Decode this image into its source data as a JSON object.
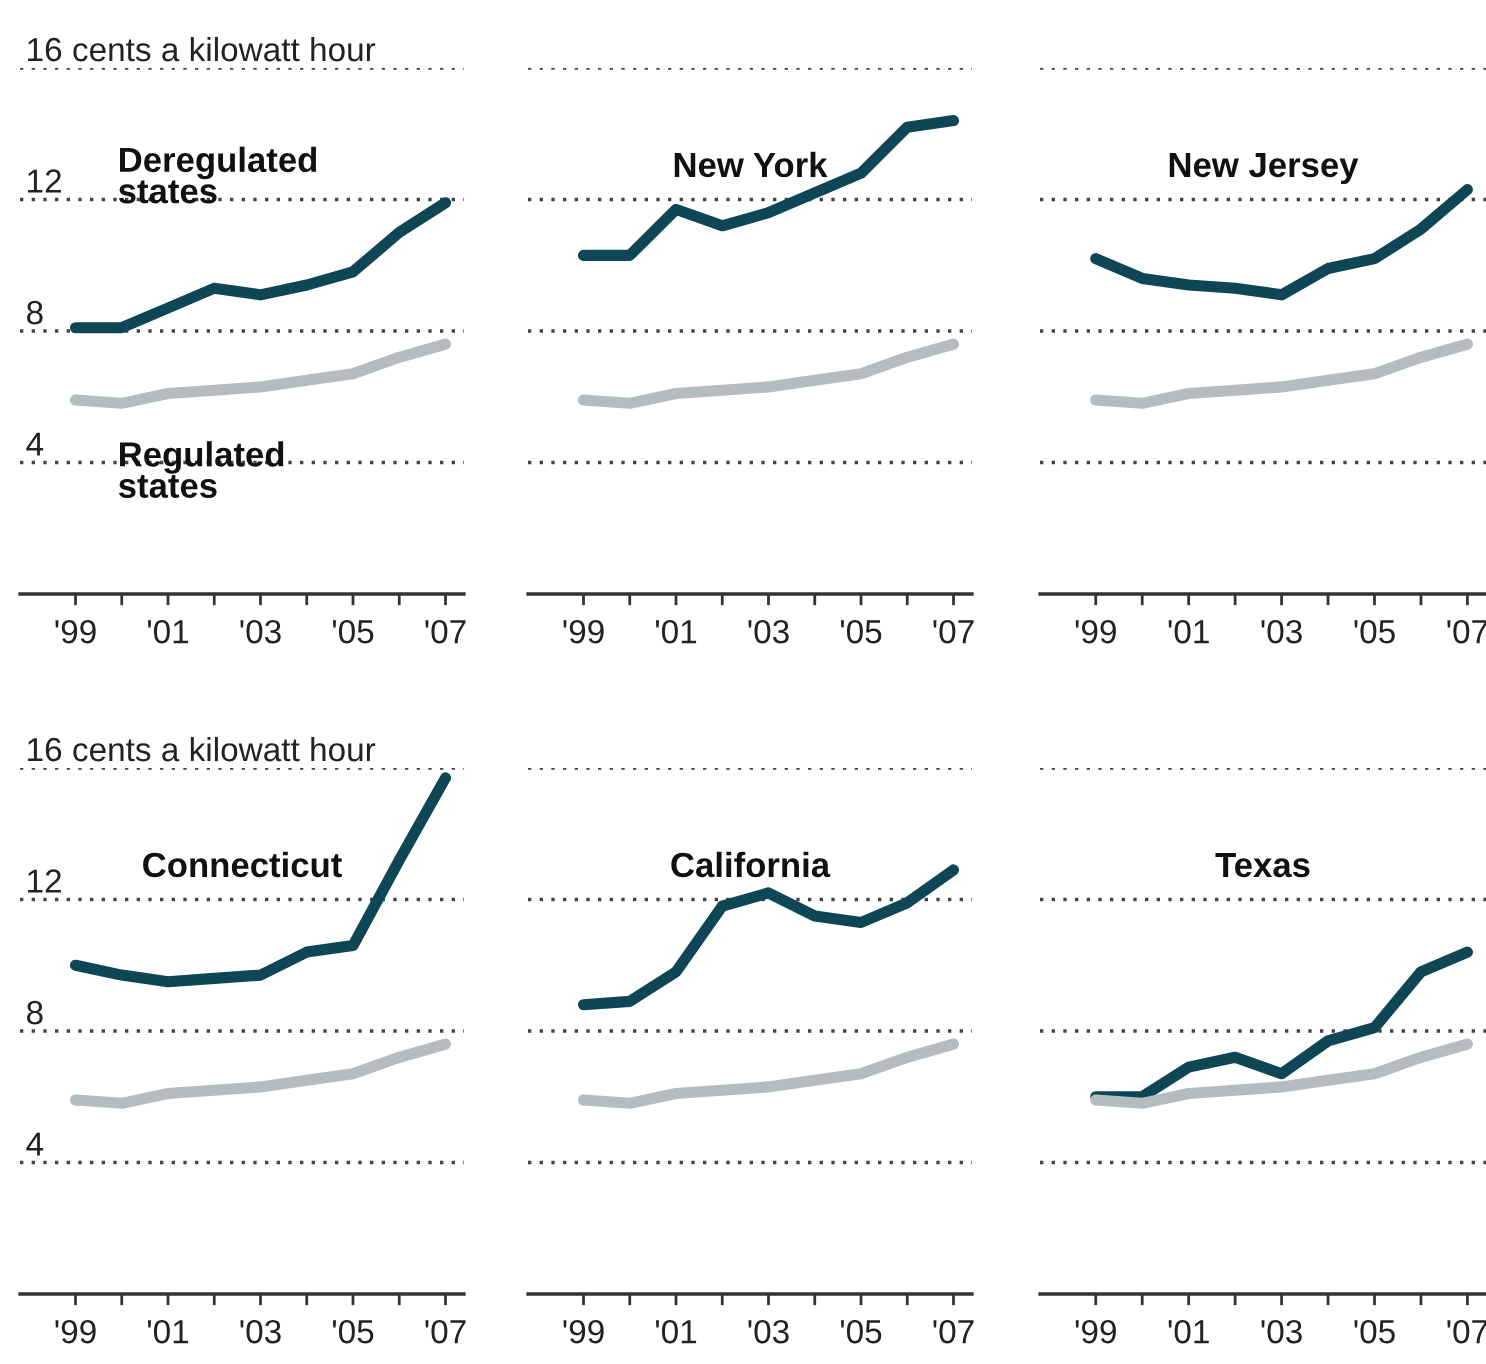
{
  "chart_data": [
    {
      "type": "line",
      "x": [
        1999,
        2000,
        2001,
        2002,
        2003,
        2004,
        2005,
        2006,
        2007
      ],
      "xlim": [
        1997.8,
        2007.4
      ],
      "xticks": [
        {
          "value": 1999,
          "label": "'99"
        },
        {
          "value": 2000,
          "label": null
        },
        {
          "value": 2001,
          "label": "'01"
        },
        {
          "value": 2002,
          "label": null
        },
        {
          "value": 2003,
          "label": "'03"
        },
        {
          "value": 2004,
          "label": null
        },
        {
          "value": 2005,
          "label": "'05"
        },
        {
          "value": 2006,
          "label": null
        },
        {
          "value": 2007,
          "label": "'07"
        }
      ],
      "ylim": [
        0,
        16
      ],
      "yticks": [
        4,
        8,
        12,
        {
          "value": 16,
          "label": "16 cents a kilowatt hour"
        }
      ],
      "grid": "y",
      "legend": false,
      "series": [
        {
          "name": "Deregulated states",
          "color": "#0f4656",
          "values": [
            8.1,
            8.1,
            8.7,
            9.3,
            9.1,
            9.4,
            9.8,
            11.0,
            11.9
          ]
        },
        {
          "name": "Regulated states",
          "color": "#b4bcc0",
          "values": [
            5.9,
            5.8,
            6.1,
            6.2,
            6.3,
            6.5,
            6.7,
            7.2,
            7.6
          ]
        }
      ]
    },
    {
      "type": "line",
      "title": "New York",
      "x": [
        1999,
        2000,
        2001,
        2002,
        2003,
        2004,
        2005,
        2006,
        2007
      ],
      "xlim": [
        1997.8,
        2007.4
      ],
      "xticks": [
        {
          "value": 1999,
          "label": "'99"
        },
        {
          "value": 2000,
          "label": null
        },
        {
          "value": 2001,
          "label": "'01"
        },
        {
          "value": 2002,
          "label": null
        },
        {
          "value": 2003,
          "label": "'03"
        },
        {
          "value": 2004,
          "label": null
        },
        {
          "value": 2005,
          "label": "'05"
        },
        {
          "value": 2006,
          "label": null
        },
        {
          "value": 2007,
          "label": "'07"
        }
      ],
      "ylim": [
        0,
        16
      ],
      "yticks": [
        4,
        8,
        12,
        16
      ],
      "tick_labels": "x",
      "grid": "y",
      "legend": false,
      "series": [
        {
          "color": "#0f4656",
          "values": [
            10.3,
            10.3,
            11.7,
            11.2,
            11.6,
            12.2,
            12.8,
            14.2,
            14.4
          ]
        },
        {
          "color": "#b4bcc0",
          "values": [
            5.9,
            5.8,
            6.1,
            6.2,
            6.3,
            6.5,
            6.7,
            7.2,
            7.6
          ]
        }
      ]
    },
    {
      "type": "line",
      "title": "New Jersey",
      "x": [
        1999,
        2000,
        2001,
        2002,
        2003,
        2004,
        2005,
        2006,
        2007
      ],
      "xlim": [
        1997.8,
        2007.4
      ],
      "xticks": [
        {
          "value": 1999,
          "label": "'99"
        },
        {
          "value": 2000,
          "label": null
        },
        {
          "value": 2001,
          "label": "'01"
        },
        {
          "value": 2002,
          "label": null
        },
        {
          "value": 2003,
          "label": "'03"
        },
        {
          "value": 2004,
          "label": null
        },
        {
          "value": 2005,
          "label": "'05"
        },
        {
          "value": 2006,
          "label": null
        },
        {
          "value": 2007,
          "label": "'07"
        }
      ],
      "ylim": [
        0,
        16
      ],
      "yticks": [
        4,
        8,
        12,
        16
      ],
      "tick_labels": "x",
      "grid": "y",
      "legend": false,
      "series": [
        {
          "color": "#0f4656",
          "values": [
            10.2,
            9.6,
            9.4,
            9.3,
            9.1,
            9.9,
            10.2,
            11.1,
            12.3
          ]
        },
        {
          "color": "#b4bcc0",
          "values": [
            5.9,
            5.8,
            6.1,
            6.2,
            6.3,
            6.5,
            6.7,
            7.2,
            7.6
          ]
        }
      ]
    },
    {
      "type": "line",
      "title": "Connecticut",
      "x": [
        1999,
        2000,
        2001,
        2002,
        2003,
        2004,
        2005,
        2006,
        2007
      ],
      "xlim": [
        1997.8,
        2007.4
      ],
      "xticks": [
        {
          "value": 1999,
          "label": "'99"
        },
        {
          "value": 2000,
          "label": null
        },
        {
          "value": 2001,
          "label": "'01"
        },
        {
          "value": 2002,
          "label": null
        },
        {
          "value": 2003,
          "label": "'03"
        },
        {
          "value": 2004,
          "label": null
        },
        {
          "value": 2005,
          "label": "'05"
        },
        {
          "value": 2006,
          "label": null
        },
        {
          "value": 2007,
          "label": "'07"
        }
      ],
      "ylim": [
        0,
        16
      ],
      "yticks": [
        4,
        8,
        12,
        {
          "value": 16,
          "label": "16 cents a kilowatt hour"
        }
      ],
      "grid": "y",
      "legend": false,
      "series": [
        {
          "color": "#0f4656",
          "values": [
            10.0,
            9.7,
            9.5,
            9.6,
            9.7,
            10.4,
            10.6,
            13.2,
            15.7
          ]
        },
        {
          "color": "#b4bcc0",
          "values": [
            5.9,
            5.8,
            6.1,
            6.2,
            6.3,
            6.5,
            6.7,
            7.2,
            7.6
          ]
        }
      ]
    },
    {
      "type": "line",
      "title": "California",
      "x": [
        1999,
        2000,
        2001,
        2002,
        2003,
        2004,
        2005,
        2006,
        2007
      ],
      "xlim": [
        1997.8,
        2007.4
      ],
      "xticks": [
        {
          "value": 1999,
          "label": "'99"
        },
        {
          "value": 2000,
          "label": null
        },
        {
          "value": 2001,
          "label": "'01"
        },
        {
          "value": 2002,
          "label": null
        },
        {
          "value": 2003,
          "label": "'03"
        },
        {
          "value": 2004,
          "label": null
        },
        {
          "value": 2005,
          "label": "'05"
        },
        {
          "value": 2006,
          "label": null
        },
        {
          "value": 2007,
          "label": "'07"
        }
      ],
      "ylim": [
        0,
        16
      ],
      "yticks": [
        4,
        8,
        12,
        16
      ],
      "tick_labels": "x",
      "grid": "y",
      "legend": false,
      "series": [
        {
          "color": "#0f4656",
          "values": [
            8.8,
            8.9,
            9.8,
            11.8,
            12.2,
            11.5,
            11.3,
            11.9,
            12.9
          ]
        },
        {
          "color": "#b4bcc0",
          "values": [
            5.9,
            5.8,
            6.1,
            6.2,
            6.3,
            6.5,
            6.7,
            7.2,
            7.6
          ]
        }
      ]
    },
    {
      "type": "line",
      "title": "Texas",
      "x": [
        1999,
        2000,
        2001,
        2002,
        2003,
        2004,
        2005,
        2006,
        2007
      ],
      "xlim": [
        1997.8,
        2007.4
      ],
      "xticks": [
        {
          "value": 1999,
          "label": "'99"
        },
        {
          "value": 2000,
          "label": null
        },
        {
          "value": 2001,
          "label": "'01"
        },
        {
          "value": 2002,
          "label": null
        },
        {
          "value": 2003,
          "label": "'03"
        },
        {
          "value": 2004,
          "label": null
        },
        {
          "value": 2005,
          "label": "'05"
        },
        {
          "value": 2006,
          "label": null
        },
        {
          "value": 2007,
          "label": "'07"
        }
      ],
      "ylim": [
        0,
        16
      ],
      "yticks": [
        4,
        8,
        12,
        16
      ],
      "tick_labels": "x",
      "grid": "y",
      "legend": false,
      "series": [
        {
          "color": "#0f4656",
          "values": [
            6.0,
            6.0,
            6.9,
            7.2,
            6.7,
            7.7,
            8.1,
            9.8,
            10.4
          ]
        },
        {
          "color": "#b4bcc0",
          "values": [
            5.9,
            5.8,
            6.1,
            6.2,
            6.3,
            6.5,
            6.7,
            7.2,
            7.6
          ]
        }
      ]
    }
  ]
}
